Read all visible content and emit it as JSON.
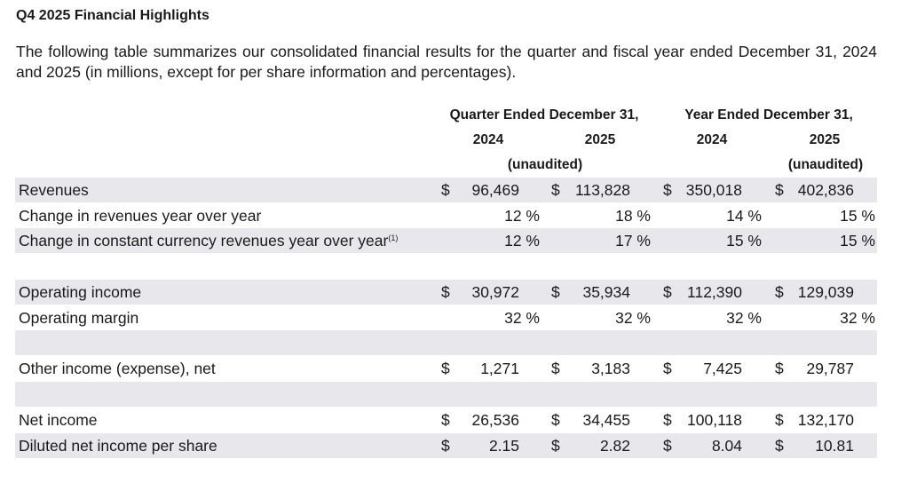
{
  "title": "Q4 2025 Financial Highlights",
  "intro": "The following table summarizes our consolidated financial results for the quarter and fiscal year ended December 31, 2024 and 2025 (in millions, except for per share information and percentages).",
  "headers": {
    "quarter": "Quarter Ended December 31,",
    "year": "Year Ended December 31,",
    "years": [
      "2024",
      "2025",
      "2024",
      "2025"
    ],
    "unaudited": "(unaudited)"
  },
  "rows": [
    {
      "label": "Revenues",
      "dollar": true,
      "values": [
        "96,469",
        "113,828",
        "350,018",
        "402,836"
      ]
    },
    {
      "label": "Change in revenues year over year",
      "pct": true,
      "values": [
        "12 %",
        "18 %",
        "14 %",
        "15 %"
      ]
    },
    {
      "label": "Change in constant currency revenues year over year",
      "footnote": "(1)",
      "pct": true,
      "values": [
        "12 %",
        "17 %",
        "15 %",
        "15 %"
      ]
    },
    {
      "label": "Operating income",
      "dollar": true,
      "values": [
        "30,972",
        "35,934",
        "112,390",
        "129,039"
      ]
    },
    {
      "label": "Operating margin",
      "pct": true,
      "values": [
        "32 %",
        "32 %",
        "32 %",
        "32 %"
      ]
    },
    {
      "label": "Other income (expense), net",
      "dollar": true,
      "values": [
        "1,271",
        "3,183",
        "7,425",
        "29,787"
      ]
    },
    {
      "label": "Net income",
      "dollar": true,
      "values": [
        "26,536",
        "34,455",
        "100,118",
        "132,170"
      ]
    },
    {
      "label": "Diluted net income per share",
      "dollar": true,
      "values": [
        "2.15",
        "2.82",
        "8.04",
        "10.81"
      ]
    }
  ],
  "currency": "$",
  "colors": {
    "row_shade": "#e8e8ec"
  }
}
